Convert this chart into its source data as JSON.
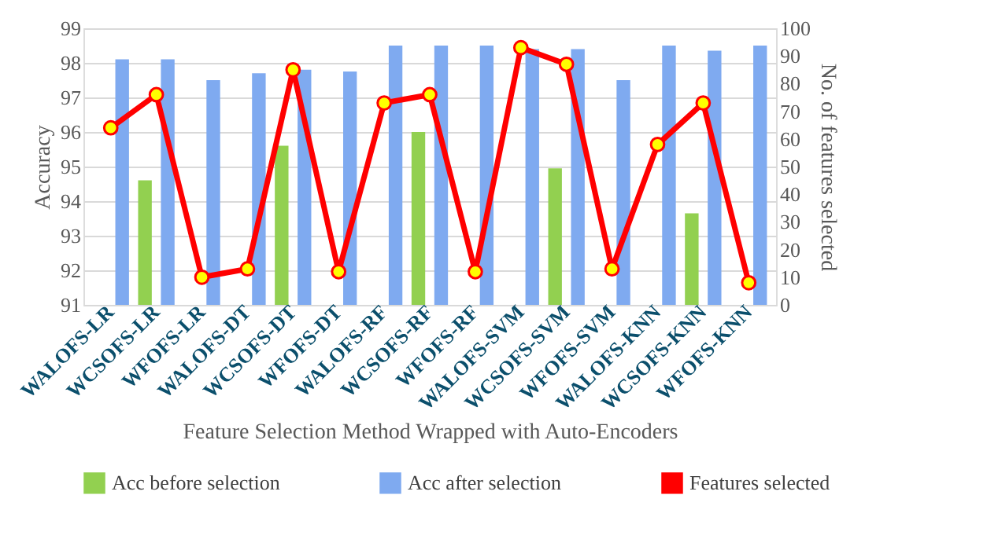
{
  "chart_data": {
    "type": "bar",
    "xlabel": "Feature Selection Method Wrapped with Auto-Encoders",
    "ylabel": "Accuracy",
    "y2label": "No. of  features selected",
    "categories": [
      "WALOFS-LR",
      "WCSOFS-LR",
      "WFOFS-LR",
      "WALOFS-DT",
      "WCSOFS-DT",
      "WFOFS-DT",
      "WALOFS-RF",
      "WCSOFS-RF",
      "WFOFS-RF",
      "WALOFS-SVM",
      "WCSOFS-SVM",
      "WFOFS-SVM",
      "WALOFS-KNN",
      "WCSOFS-KNN",
      "WFOFS-KNN"
    ],
    "series": [
      {
        "name": "Acc before selection",
        "color": "#92d050",
        "values": [
          null,
          94.6,
          null,
          null,
          95.6,
          null,
          null,
          96.0,
          null,
          null,
          94.95,
          null,
          null,
          93.65,
          null
        ]
      },
      {
        "name": "Acc after selection",
        "color": "#7faaf0",
        "values": [
          98.1,
          98.1,
          97.5,
          97.7,
          97.8,
          97.75,
          98.5,
          98.5,
          98.5,
          98.4,
          98.4,
          97.5,
          98.5,
          98.35,
          98.5
        ]
      },
      {
        "name": "Features selected",
        "color": "#ff0000",
        "type": "line",
        "axis": "y2",
        "marker": "circle",
        "values": [
          64,
          76,
          10,
          13,
          85,
          12,
          73,
          76,
          12,
          93,
          87,
          13,
          58,
          73,
          8
        ]
      }
    ],
    "ylim": [
      91,
      99
    ],
    "yticks": [
      91,
      92,
      93,
      94,
      95,
      96,
      97,
      98,
      99
    ],
    "y2lim": [
      0,
      100
    ],
    "y2ticks": [
      0,
      10,
      20,
      30,
      40,
      50,
      60,
      70,
      80,
      90,
      100
    ],
    "grid": "y",
    "legend": "bottom"
  }
}
